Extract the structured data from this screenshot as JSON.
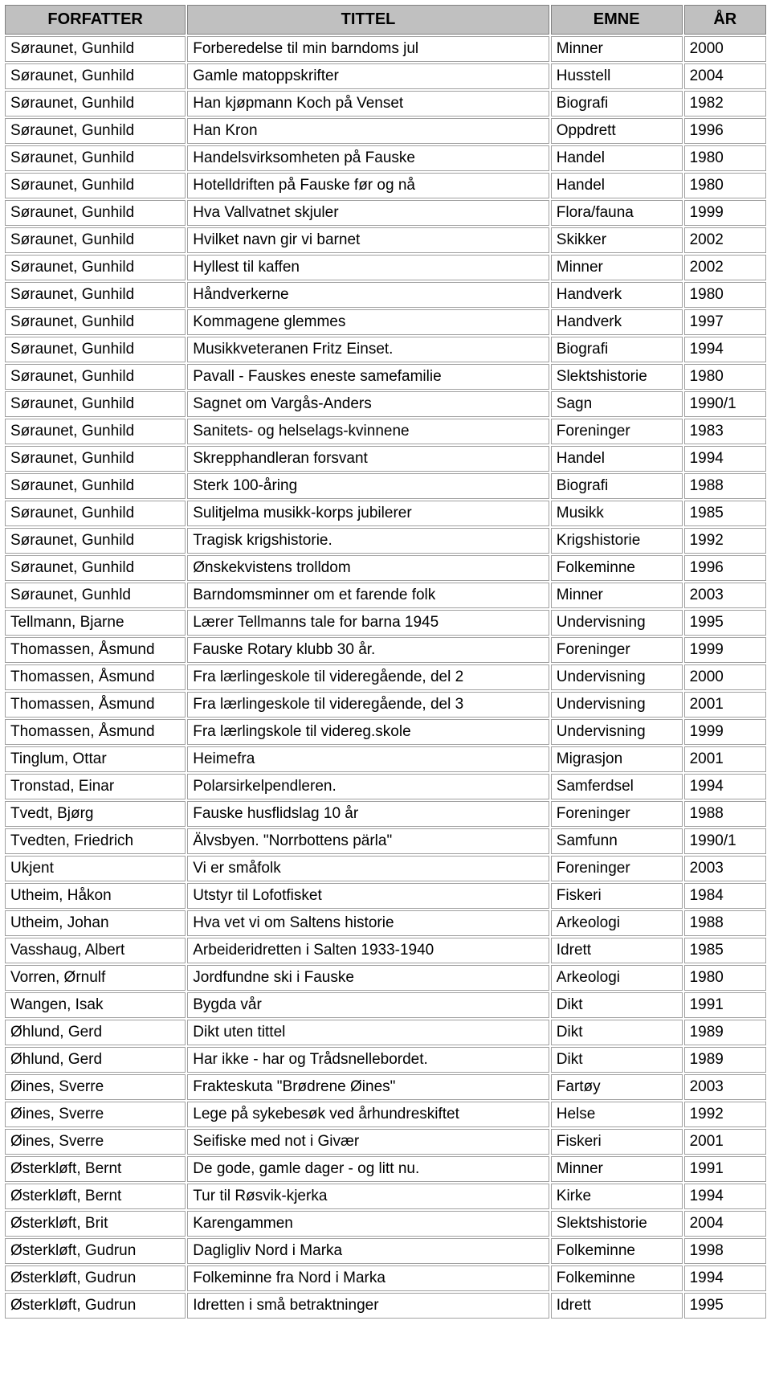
{
  "columns": [
    "FORFATTER",
    "TITTEL",
    "EMNE",
    "ÅR"
  ],
  "header_bg": "#c0c0c0",
  "border_color": "#808080",
  "cell_border_color": "#a0a0a0",
  "font_family": "Arial",
  "header_fontsize": 20,
  "cell_fontsize": 19,
  "rows": [
    [
      "Søraunet, Gunhild",
      "Forberedelse til min barndoms jul",
      "Minner",
      "2000"
    ],
    [
      "Søraunet, Gunhild",
      "Gamle matoppskrifter",
      "Husstell",
      "2004"
    ],
    [
      "Søraunet, Gunhild",
      "Han kjøpmann Koch på Venset",
      "Biografi",
      "1982"
    ],
    [
      "Søraunet, Gunhild",
      "Han Kron",
      "Oppdrett",
      "1996"
    ],
    [
      "Søraunet, Gunhild",
      "Handelsvirksomheten på Fauske",
      "Handel",
      "1980"
    ],
    [
      "Søraunet, Gunhild",
      "Hotelldriften på Fauske før og nå",
      "Handel",
      "1980"
    ],
    [
      "Søraunet, Gunhild",
      "Hva Vallvatnet skjuler",
      "Flora/fauna",
      "1999"
    ],
    [
      "Søraunet, Gunhild",
      "Hvilket navn gir vi barnet",
      "Skikker",
      "2002"
    ],
    [
      "Søraunet, Gunhild",
      "Hyllest til kaffen",
      "Minner",
      "2002"
    ],
    [
      "Søraunet, Gunhild",
      "Håndverkerne",
      "Handverk",
      "1980"
    ],
    [
      "Søraunet, Gunhild",
      "Kommagene glemmes",
      "Handverk",
      "1997"
    ],
    [
      "Søraunet, Gunhild",
      "Musikkveteranen Fritz Einset.",
      "Biografi",
      "1994"
    ],
    [
      "Søraunet, Gunhild",
      "Pavall - Fauskes eneste samefamilie",
      "Slektshistorie",
      "1980"
    ],
    [
      "Søraunet, Gunhild",
      "Sagnet om Vargås-Anders",
      "Sagn",
      "1990/1"
    ],
    [
      "Søraunet, Gunhild",
      "Sanitets- og helselags-kvinnene",
      "Foreninger",
      "1983"
    ],
    [
      "Søraunet, Gunhild",
      "Skrepphandleran forsvant",
      "Handel",
      "1994"
    ],
    [
      "Søraunet, Gunhild",
      "Sterk 100-åring",
      "Biografi",
      "1988"
    ],
    [
      "Søraunet, Gunhild",
      "Sulitjelma musikk-korps jubilerer",
      "Musikk",
      "1985"
    ],
    [
      "Søraunet, Gunhild",
      "Tragisk krigshistorie.",
      "Krigshistorie",
      "1992"
    ],
    [
      "Søraunet, Gunhild",
      "Ønskekvistens trolldom",
      "Folkeminne",
      "1996"
    ],
    [
      "Søraunet, Gunhld",
      "Barndomsminner om et farende folk",
      "Minner",
      "2003"
    ],
    [
      "Tellmann, Bjarne",
      "Lærer Tellmanns tale for barna 1945",
      "Undervisning",
      "1995"
    ],
    [
      "Thomassen, Åsmund",
      "Fauske Rotary klubb 30 år.",
      "Foreninger",
      "1999"
    ],
    [
      "Thomassen, Åsmund",
      "Fra lærlingeskole til videregående, del 2",
      "Undervisning",
      "2000"
    ],
    [
      "Thomassen, Åsmund",
      "Fra lærlingeskole til videregående, del 3",
      "Undervisning",
      "2001"
    ],
    [
      "Thomassen, Åsmund",
      "Fra lærlingskole til videreg.skole",
      "Undervisning",
      "1999"
    ],
    [
      "Tinglum, Ottar",
      "Heimefra",
      "Migrasjon",
      "2001"
    ],
    [
      "Tronstad, Einar",
      "Polarsirkelpendleren.",
      "Samferdsel",
      "1994"
    ],
    [
      "Tvedt, Bjørg",
      "Fauske husflidslag 10 år",
      "Foreninger",
      "1988"
    ],
    [
      "Tvedten, Friedrich",
      "Älvsbyen. \"Norrbottens pärla\"",
      "Samfunn",
      "1990/1"
    ],
    [
      "Ukjent",
      "Vi er småfolk",
      "Foreninger",
      "2003"
    ],
    [
      "Utheim, Håkon",
      "Utstyr til Lofotfisket",
      "Fiskeri",
      "1984"
    ],
    [
      "Utheim, Johan",
      "Hva vet vi om Saltens historie",
      "Arkeologi",
      "1988"
    ],
    [
      "Vasshaug, Albert",
      "Arbeideridretten i Salten 1933-1940",
      "Idrett",
      "1985"
    ],
    [
      "Vorren, Ørnulf",
      "Jordfundne ski i Fauske",
      "Arkeologi",
      "1980"
    ],
    [
      "Wangen, Isak",
      "Bygda vår",
      "Dikt",
      "1991"
    ],
    [
      "Øhlund, Gerd",
      "Dikt uten tittel",
      "Dikt",
      "1989"
    ],
    [
      "Øhlund, Gerd",
      "Har ikke - har og Trådsnellebordet.",
      "Dikt",
      "1989"
    ],
    [
      "Øines, Sverre",
      "Frakteskuta \"Brødrene Øines\"",
      "Fartøy",
      "2003"
    ],
    [
      "Øines, Sverre",
      "Lege på sykebesøk ved århundreskiftet",
      "Helse",
      "1992"
    ],
    [
      "Øines, Sverre",
      "Seifiske med not i Givær",
      "Fiskeri",
      "2001"
    ],
    [
      "Østerkløft, Bernt",
      "De gode, gamle dager - og litt nu.",
      "Minner",
      "1991"
    ],
    [
      "Østerkløft, Bernt",
      "Tur til Røsvik-kjerka",
      "Kirke",
      "1994"
    ],
    [
      "Østerkløft, Brit",
      "Karengammen",
      "Slektshistorie",
      "2004"
    ],
    [
      "Østerkløft, Gudrun",
      "Dagligliv Nord i Marka",
      "Folkeminne",
      "1998"
    ],
    [
      "Østerkløft, Gudrun",
      "Folkeminne fra Nord i Marka",
      "Folkeminne",
      "1994"
    ],
    [
      "Østerkløft, Gudrun",
      "Idretten i små betraktninger",
      "Idrett",
      "1995"
    ]
  ]
}
